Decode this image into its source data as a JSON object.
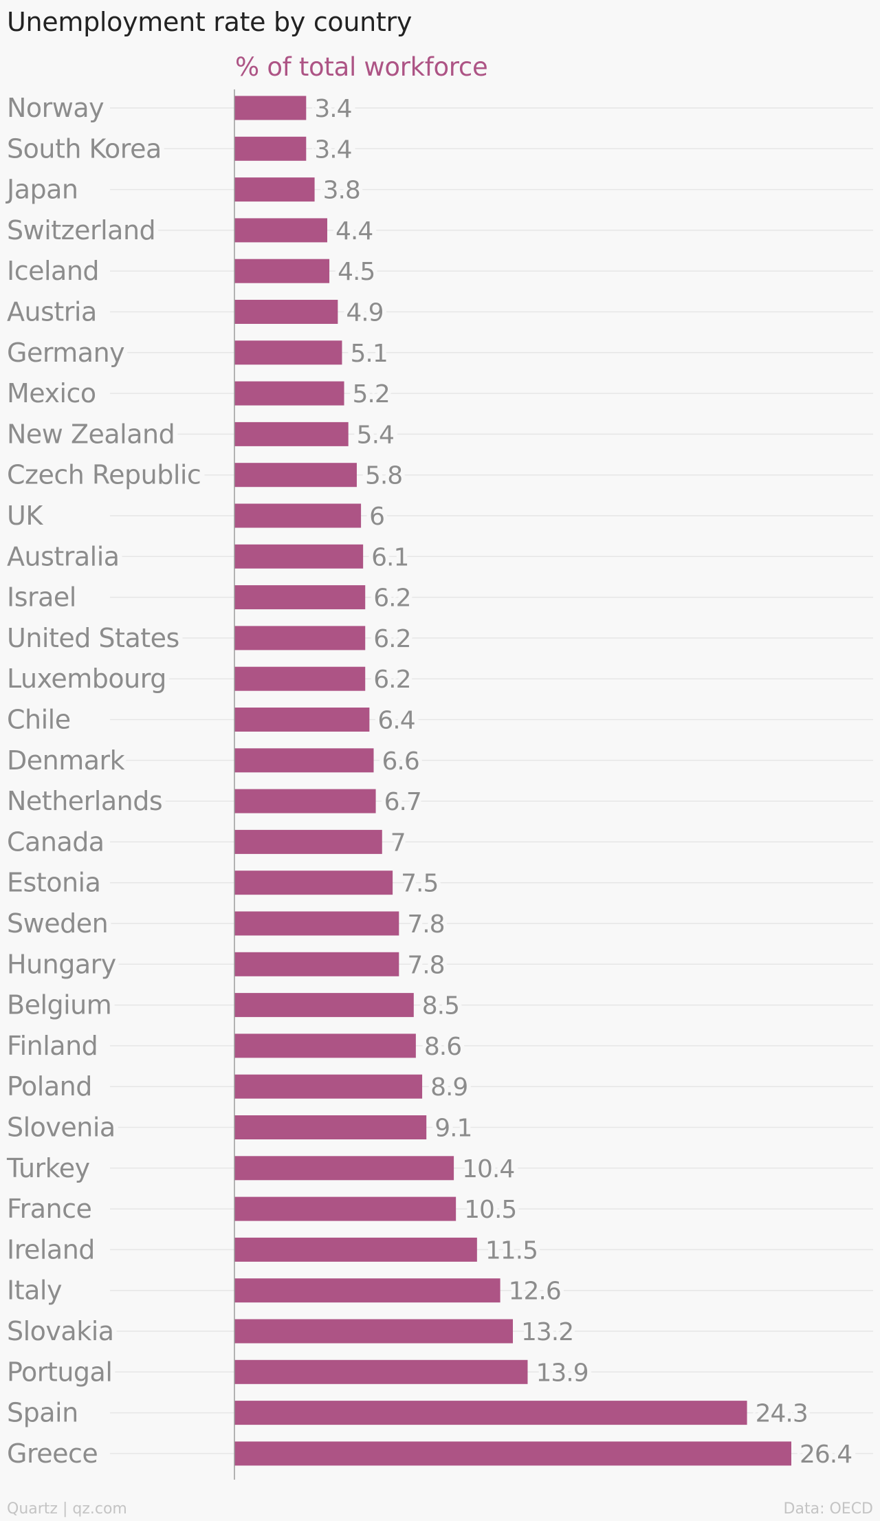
{
  "title": "Unemployment rate by country",
  "subtitle": "% of total workforce",
  "footer": {
    "credit": "Quartz | qz.com",
    "source": "Data: OECD"
  },
  "colors": {
    "bar": "#ad5485",
    "label": "#8c8c8c",
    "grid": "#e6e6e6",
    "axis": "#9a9a9a"
  },
  "chart_data": {
    "type": "bar",
    "orientation": "horizontal",
    "title": "Unemployment rate by country",
    "subtitle": "% of total workforce",
    "grid": true,
    "categories": [
      "Norway",
      "South Korea",
      "Japan",
      "Switzerland",
      "Iceland",
      "Austria",
      "Germany",
      "Mexico",
      "New Zealand",
      "Czech Republic",
      "UK",
      "Australia",
      "Israel",
      "United States",
      "Luxembourg",
      "Chile",
      "Denmark",
      "Netherlands",
      "Canada",
      "Estonia",
      "Sweden",
      "Hungary",
      "Belgium",
      "Finland",
      "Poland",
      "Slovenia",
      "Turkey",
      "France",
      "Ireland",
      "Italy",
      "Slovakia",
      "Portugal",
      "Spain",
      "Greece"
    ],
    "values": [
      3.4,
      3.4,
      3.8,
      4.4,
      4.5,
      4.9,
      5.1,
      5.2,
      5.4,
      5.8,
      6,
      6.1,
      6.2,
      6.2,
      6.2,
      6.4,
      6.6,
      6.7,
      7,
      7.5,
      7.8,
      7.8,
      8.5,
      8.6,
      8.9,
      9.1,
      10.4,
      10.5,
      11.5,
      12.6,
      13.2,
      13.9,
      24.3,
      26.4
    ],
    "value_labels": [
      "3.4",
      "3.4",
      "3.8",
      "4.4",
      "4.5",
      "4.9",
      "5.1",
      "5.2",
      "5.4",
      "5.8",
      "6",
      "6.1",
      "6.2",
      "6.2",
      "6.2",
      "6.4",
      "6.6",
      "6.7",
      "7",
      "7.5",
      "7.8",
      "7.8",
      "8.5",
      "8.6",
      "8.9",
      "9.1",
      "10.4",
      "10.5",
      "11.5",
      "12.6",
      "13.2",
      "13.9",
      "24.3",
      "26.4"
    ],
    "xlim": [
      0,
      26.4
    ]
  }
}
